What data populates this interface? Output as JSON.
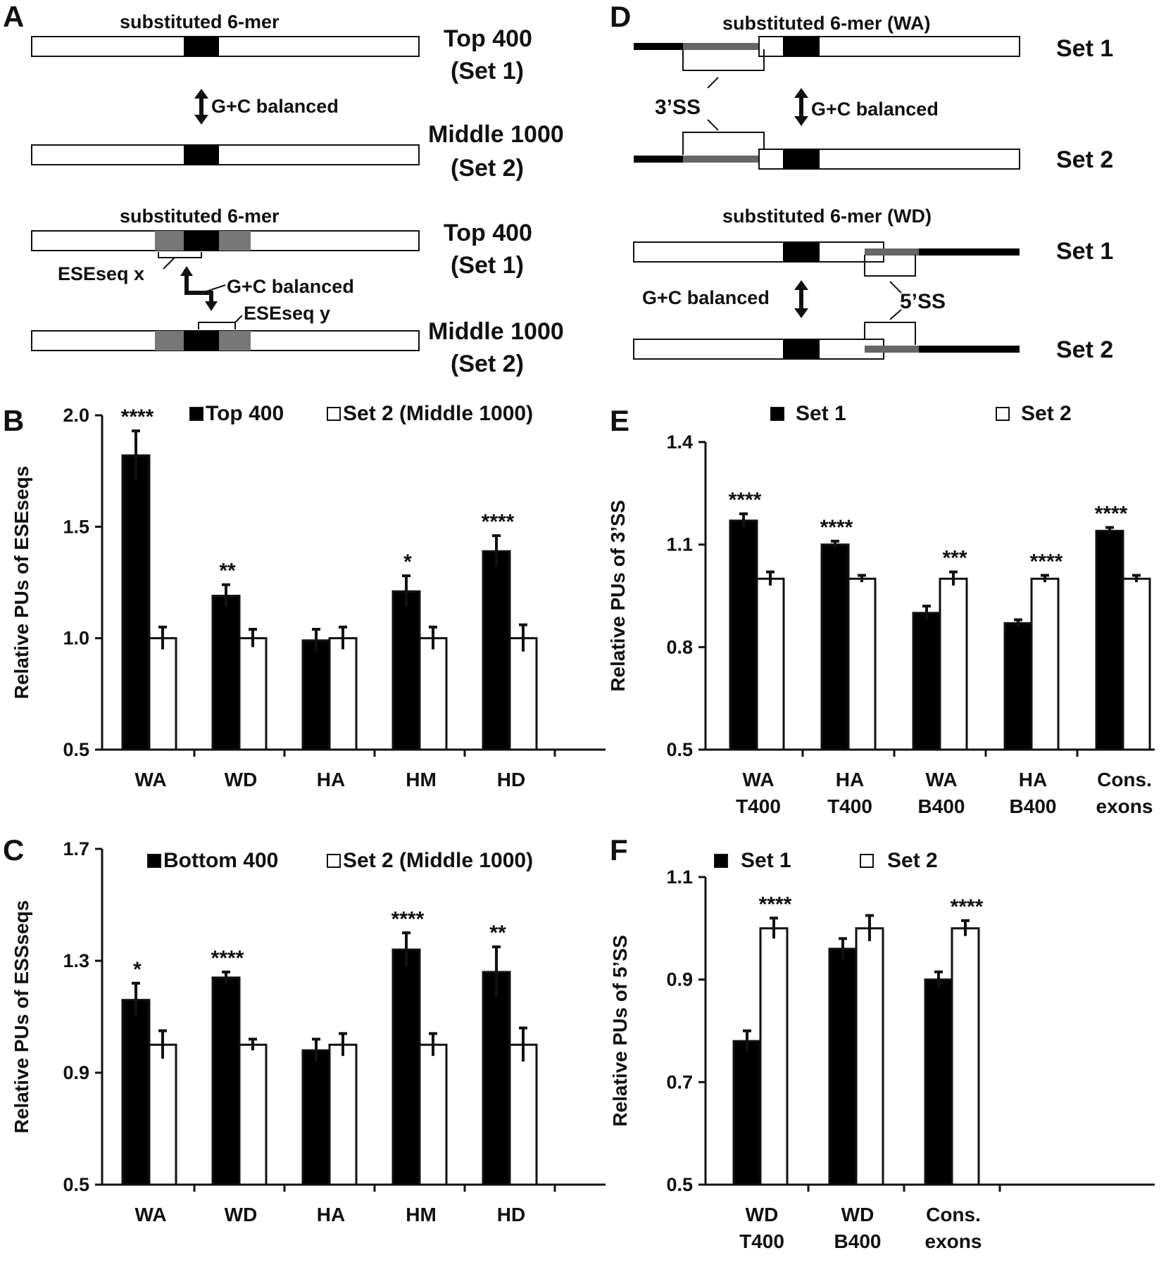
{
  "panel_letters": {
    "a": "A",
    "b": "B",
    "c": "C",
    "d": "D",
    "e": "E",
    "f": "F"
  },
  "diagram_a": {
    "substituted_label": "substituted 6-mer",
    "top_label_1": "Top 400",
    "set1_label": "(Set 1)",
    "middle_label_1": "Middle",
    "middle_number": "1000",
    "set2_label": "(Set 2)",
    "gc_balanced": "G+C balanced",
    "eseseq_x": "ESEseq x",
    "eseseq_y": "ESEseq y"
  },
  "diagram_d": {
    "substituted_wa": "substituted 6-mer (WA)",
    "substituted_wd": "substituted 6-mer (WD)",
    "set1": "Set 1",
    "set2": "Set 2",
    "ss3": "3’SS",
    "ss5": "5’SS",
    "gc_balanced": "G+C balanced"
  },
  "chart_data": [
    {
      "id": "B",
      "type": "bar",
      "ylabel": "Relative PUs of ESEseqs",
      "ylim": [
        0.5,
        2.0
      ],
      "yticks": [
        "0.5",
        "1.0",
        "1.5",
        "2.0"
      ],
      "categories": [
        "WA",
        "WD",
        "HA",
        "HM",
        "HD"
      ],
      "series": [
        {
          "name": "Top 400",
          "color": "#000000",
          "values": [
            1.82,
            1.19,
            0.99,
            1.21,
            1.39
          ],
          "errors": [
            0.11,
            0.05,
            0.05,
            0.07,
            0.07
          ]
        },
        {
          "name": "Set 2 (Middle 1000)",
          "color": "#ffffff",
          "values": [
            1.0,
            1.0,
            1.0,
            1.0,
            1.0
          ],
          "errors": [
            0.05,
            0.04,
            0.05,
            0.05,
            0.06
          ]
        }
      ],
      "significance": [
        "****",
        "**",
        "",
        "*",
        "****"
      ],
      "legend_position": "top"
    },
    {
      "id": "C",
      "type": "bar",
      "ylabel": "Relative PUs of ESSseqs",
      "ylim": [
        0.5,
        1.7
      ],
      "yticks": [
        "0.5",
        "0.9",
        "1.3",
        "1.7"
      ],
      "categories": [
        "WA",
        "WD",
        "HA",
        "HM",
        "HD"
      ],
      "series": [
        {
          "name": "Bottom 400",
          "color": "#000000",
          "values": [
            1.16,
            1.24,
            0.98,
            1.34,
            1.26
          ],
          "errors": [
            0.06,
            0.02,
            0.04,
            0.06,
            0.09
          ]
        },
        {
          "name": "Set 2 (Middle 1000)",
          "color": "#ffffff",
          "values": [
            1.0,
            1.0,
            1.0,
            1.0,
            1.0
          ],
          "errors": [
            0.05,
            0.02,
            0.04,
            0.04,
            0.06
          ]
        }
      ],
      "significance": [
        "*",
        "****",
        "",
        "****",
        "**"
      ],
      "legend_position": "top"
    },
    {
      "id": "E",
      "type": "bar",
      "ylabel": "Relative PUs of 3’SS",
      "ylim": [
        0.5,
        1.4
      ],
      "yticks": [
        "0.5",
        "0.8",
        "1.1",
        "1.4"
      ],
      "categories": [
        [
          "WA",
          "T400"
        ],
        [
          "HA",
          "T400"
        ],
        [
          "WA",
          "B400"
        ],
        [
          "HA",
          "B400"
        ],
        [
          "Cons.",
          "exons"
        ]
      ],
      "series": [
        {
          "name": "Set 1",
          "color": "#000000",
          "values": [
            1.17,
            1.1,
            0.9,
            0.87,
            1.14
          ],
          "errors": [
            0.02,
            0.01,
            0.02,
            0.01,
            0.01
          ]
        },
        {
          "name": "Set 2",
          "color": "#ffffff",
          "values": [
            1.0,
            1.0,
            1.0,
            1.0,
            1.0
          ],
          "errors": [
            0.02,
            0.01,
            0.02,
            0.01,
            0.01
          ]
        }
      ],
      "significance": [
        "****",
        "****",
        "***",
        "****",
        "****"
      ],
      "legend_position": "top"
    },
    {
      "id": "F",
      "type": "bar",
      "ylabel": "Relative PUs of 5’SS",
      "ylim": [
        0.5,
        1.1
      ],
      "yticks": [
        "0.5",
        "0.7",
        "0.9",
        "1.1"
      ],
      "categories": [
        [
          "WD",
          "T400"
        ],
        [
          "WD",
          "B400"
        ],
        [
          "Cons.",
          "exons"
        ]
      ],
      "series": [
        {
          "name": "Set 1",
          "color": "#000000",
          "values": [
            0.78,
            0.96,
            0.9
          ],
          "errors": [
            0.02,
            0.02,
            0.015
          ]
        },
        {
          "name": "Set 2",
          "color": "#ffffff",
          "values": [
            1.0,
            1.0,
            1.0
          ],
          "errors": [
            0.02,
            0.025,
            0.015
          ]
        }
      ],
      "significance": [
        "****",
        "",
        "****"
      ],
      "legend_position": "top"
    }
  ]
}
